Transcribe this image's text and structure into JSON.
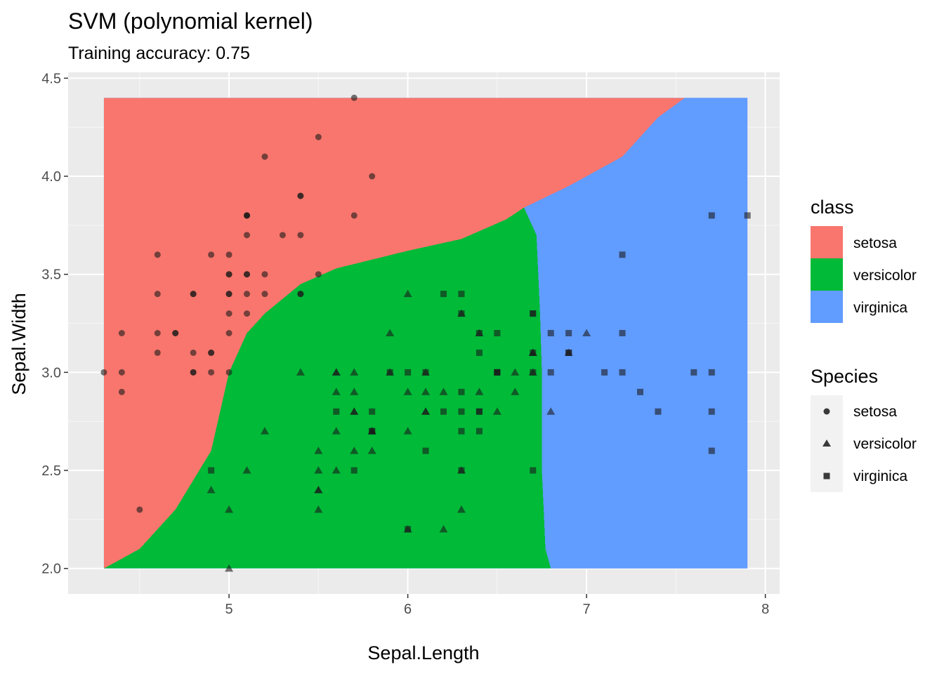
{
  "chart_data": {
    "type": "scatter",
    "title": "SVM (polynomial kernel)",
    "subtitle": "Training accuracy: 0.75",
    "xlabel": "Sepal.Length",
    "ylabel": "Sepal.Width",
    "xlim": [
      4.1,
      8.08
    ],
    "ylim": [
      1.87,
      4.53
    ],
    "x_ticks": [
      5,
      6,
      7,
      8
    ],
    "y_ticks": [
      2.0,
      2.5,
      3.0,
      3.5,
      4.0,
      4.5
    ],
    "x_tick_labels": [
      "5",
      "6",
      "7",
      "8"
    ],
    "y_tick_labels": [
      "2.0",
      "2.5",
      "3.0",
      "3.5",
      "4.0",
      "4.5"
    ],
    "grid": true,
    "background": "#ebebeb",
    "decision_region": {
      "x_range": [
        4.3,
        7.9
      ],
      "y_range": [
        2.0,
        4.4
      ],
      "setosa_versicolor_boundary": [
        [
          4.3,
          2.0
        ],
        [
          4.5,
          2.1
        ],
        [
          4.7,
          2.3
        ],
        [
          4.9,
          2.6
        ],
        [
          5.0,
          3.0
        ],
        [
          5.1,
          3.2
        ],
        [
          5.2,
          3.3
        ],
        [
          5.4,
          3.45
        ],
        [
          5.6,
          3.53
        ],
        [
          6.0,
          3.62
        ],
        [
          6.3,
          3.68
        ],
        [
          6.55,
          3.78
        ],
        [
          6.65,
          3.84
        ]
      ],
      "versicolor_virginica_boundary": [
        [
          6.65,
          3.84
        ],
        [
          6.72,
          3.7
        ],
        [
          6.74,
          3.3
        ],
        [
          6.75,
          3.0
        ],
        [
          6.75,
          2.5
        ],
        [
          6.77,
          2.1
        ],
        [
          6.8,
          2.0
        ]
      ],
      "setosa_virginica_boundary": [
        [
          6.65,
          3.84
        ],
        [
          6.9,
          3.95
        ],
        [
          7.2,
          4.1
        ],
        [
          7.4,
          4.3
        ],
        [
          7.55,
          4.4
        ]
      ]
    },
    "legend_class": {
      "title": "class",
      "entries": [
        {
          "name": "setosa",
          "color": "#F8766D"
        },
        {
          "name": "versicolor",
          "color": "#00BA38"
        },
        {
          "name": "virginica",
          "color": "#619CFF"
        }
      ]
    },
    "legend_species": {
      "title": "Species",
      "entries": [
        {
          "name": "setosa",
          "shape": "circle"
        },
        {
          "name": "versicolor",
          "shape": "triangle"
        },
        {
          "name": "virginica",
          "shape": "square"
        }
      ]
    },
    "legend_placement": "right",
    "series": [
      {
        "name": "setosa",
        "shape": "circle",
        "points": [
          [
            5.1,
            3.5
          ],
          [
            4.9,
            3.0
          ],
          [
            4.7,
            3.2
          ],
          [
            4.6,
            3.1
          ],
          [
            5.0,
            3.6
          ],
          [
            5.4,
            3.9
          ],
          [
            4.6,
            3.4
          ],
          [
            5.0,
            3.4
          ],
          [
            4.4,
            2.9
          ],
          [
            4.9,
            3.1
          ],
          [
            5.4,
            3.7
          ],
          [
            4.8,
            3.4
          ],
          [
            4.8,
            3.0
          ],
          [
            4.3,
            3.0
          ],
          [
            5.8,
            4.0
          ],
          [
            5.7,
            4.4
          ],
          [
            5.4,
            3.9
          ],
          [
            5.1,
            3.5
          ],
          [
            5.7,
            3.8
          ],
          [
            5.1,
            3.8
          ],
          [
            5.4,
            3.4
          ],
          [
            5.1,
            3.7
          ],
          [
            4.6,
            3.6
          ],
          [
            5.1,
            3.3
          ],
          [
            4.8,
            3.4
          ],
          [
            5.0,
            3.0
          ],
          [
            5.0,
            3.4
          ],
          [
            5.2,
            3.5
          ],
          [
            5.2,
            3.4
          ],
          [
            4.7,
            3.2
          ],
          [
            4.8,
            3.1
          ],
          [
            5.4,
            3.4
          ],
          [
            5.2,
            4.1
          ],
          [
            5.5,
            4.2
          ],
          [
            4.9,
            3.1
          ],
          [
            5.0,
            3.2
          ],
          [
            5.5,
            3.5
          ],
          [
            4.9,
            3.6
          ],
          [
            4.4,
            3.0
          ],
          [
            5.1,
            3.4
          ],
          [
            5.0,
            3.5
          ],
          [
            4.5,
            2.3
          ],
          [
            4.4,
            3.2
          ],
          [
            5.0,
            3.5
          ],
          [
            5.1,
            3.8
          ],
          [
            4.8,
            3.0
          ],
          [
            5.1,
            3.8
          ],
          [
            4.6,
            3.2
          ],
          [
            5.3,
            3.7
          ],
          [
            5.0,
            3.3
          ]
        ]
      },
      {
        "name": "versicolor",
        "shape": "triangle",
        "points": [
          [
            7.0,
            3.2
          ],
          [
            6.4,
            3.2
          ],
          [
            6.9,
            3.1
          ],
          [
            5.5,
            2.3
          ],
          [
            6.5,
            2.8
          ],
          [
            5.7,
            2.8
          ],
          [
            6.3,
            3.3
          ],
          [
            4.9,
            2.4
          ],
          [
            6.6,
            2.9
          ],
          [
            5.2,
            2.7
          ],
          [
            5.0,
            2.0
          ],
          [
            5.9,
            3.0
          ],
          [
            6.0,
            2.2
          ],
          [
            6.1,
            2.9
          ],
          [
            5.6,
            2.9
          ],
          [
            6.7,
            3.1
          ],
          [
            5.6,
            3.0
          ],
          [
            5.8,
            2.7
          ],
          [
            6.2,
            2.2
          ],
          [
            5.6,
            2.5
          ],
          [
            5.9,
            3.2
          ],
          [
            6.1,
            2.8
          ],
          [
            6.3,
            2.5
          ],
          [
            6.1,
            2.8
          ],
          [
            6.4,
            2.9
          ],
          [
            6.6,
            3.0
          ],
          [
            6.8,
            2.8
          ],
          [
            6.7,
            3.0
          ],
          [
            6.0,
            2.9
          ],
          [
            5.7,
            2.6
          ],
          [
            5.5,
            2.4
          ],
          [
            5.5,
            2.4
          ],
          [
            5.8,
            2.7
          ],
          [
            6.0,
            2.7
          ],
          [
            5.4,
            3.0
          ],
          [
            6.0,
            3.4
          ],
          [
            6.7,
            3.1
          ],
          [
            6.3,
            2.3
          ],
          [
            5.6,
            3.0
          ],
          [
            5.5,
            2.5
          ],
          [
            5.5,
            2.6
          ],
          [
            6.1,
            3.0
          ],
          [
            5.8,
            2.6
          ],
          [
            5.0,
            2.3
          ],
          [
            5.6,
            2.7
          ],
          [
            5.7,
            3.0
          ],
          [
            5.7,
            2.9
          ],
          [
            6.2,
            2.9
          ],
          [
            5.1,
            2.5
          ],
          [
            5.7,
            2.8
          ]
        ]
      },
      {
        "name": "virginica",
        "shape": "square",
        "points": [
          [
            6.3,
            3.3
          ],
          [
            5.8,
            2.7
          ],
          [
            7.1,
            3.0
          ],
          [
            6.3,
            2.9
          ],
          [
            6.5,
            3.0
          ],
          [
            7.6,
            3.0
          ],
          [
            4.9,
            2.5
          ],
          [
            7.3,
            2.9
          ],
          [
            6.7,
            2.5
          ],
          [
            7.2,
            3.6
          ],
          [
            6.5,
            3.2
          ],
          [
            6.4,
            2.7
          ],
          [
            6.8,
            3.0
          ],
          [
            5.7,
            2.5
          ],
          [
            5.8,
            2.8
          ],
          [
            6.4,
            3.2
          ],
          [
            6.5,
            3.0
          ],
          [
            7.7,
            3.8
          ],
          [
            7.7,
            2.6
          ],
          [
            6.0,
            2.2
          ],
          [
            6.9,
            3.2
          ],
          [
            5.6,
            2.8
          ],
          [
            7.7,
            2.8
          ],
          [
            6.3,
            2.7
          ],
          [
            6.7,
            3.3
          ],
          [
            7.2,
            3.2
          ],
          [
            6.2,
            2.8
          ],
          [
            6.1,
            3.0
          ],
          [
            6.4,
            2.8
          ],
          [
            7.2,
            3.0
          ],
          [
            7.4,
            2.8
          ],
          [
            7.9,
            3.8
          ],
          [
            6.4,
            2.8
          ],
          [
            6.3,
            2.8
          ],
          [
            6.1,
            2.6
          ],
          [
            7.7,
            3.0
          ],
          [
            6.3,
            3.4
          ],
          [
            6.4,
            3.1
          ],
          [
            6.0,
            3.0
          ],
          [
            6.9,
            3.1
          ],
          [
            6.7,
            3.1
          ],
          [
            6.9,
            3.1
          ],
          [
            5.8,
            2.7
          ],
          [
            6.8,
            3.2
          ],
          [
            6.7,
            3.3
          ],
          [
            6.7,
            3.0
          ],
          [
            6.3,
            2.5
          ],
          [
            6.5,
            3.0
          ],
          [
            6.2,
            3.4
          ],
          [
            5.9,
            3.0
          ]
        ]
      }
    ]
  }
}
